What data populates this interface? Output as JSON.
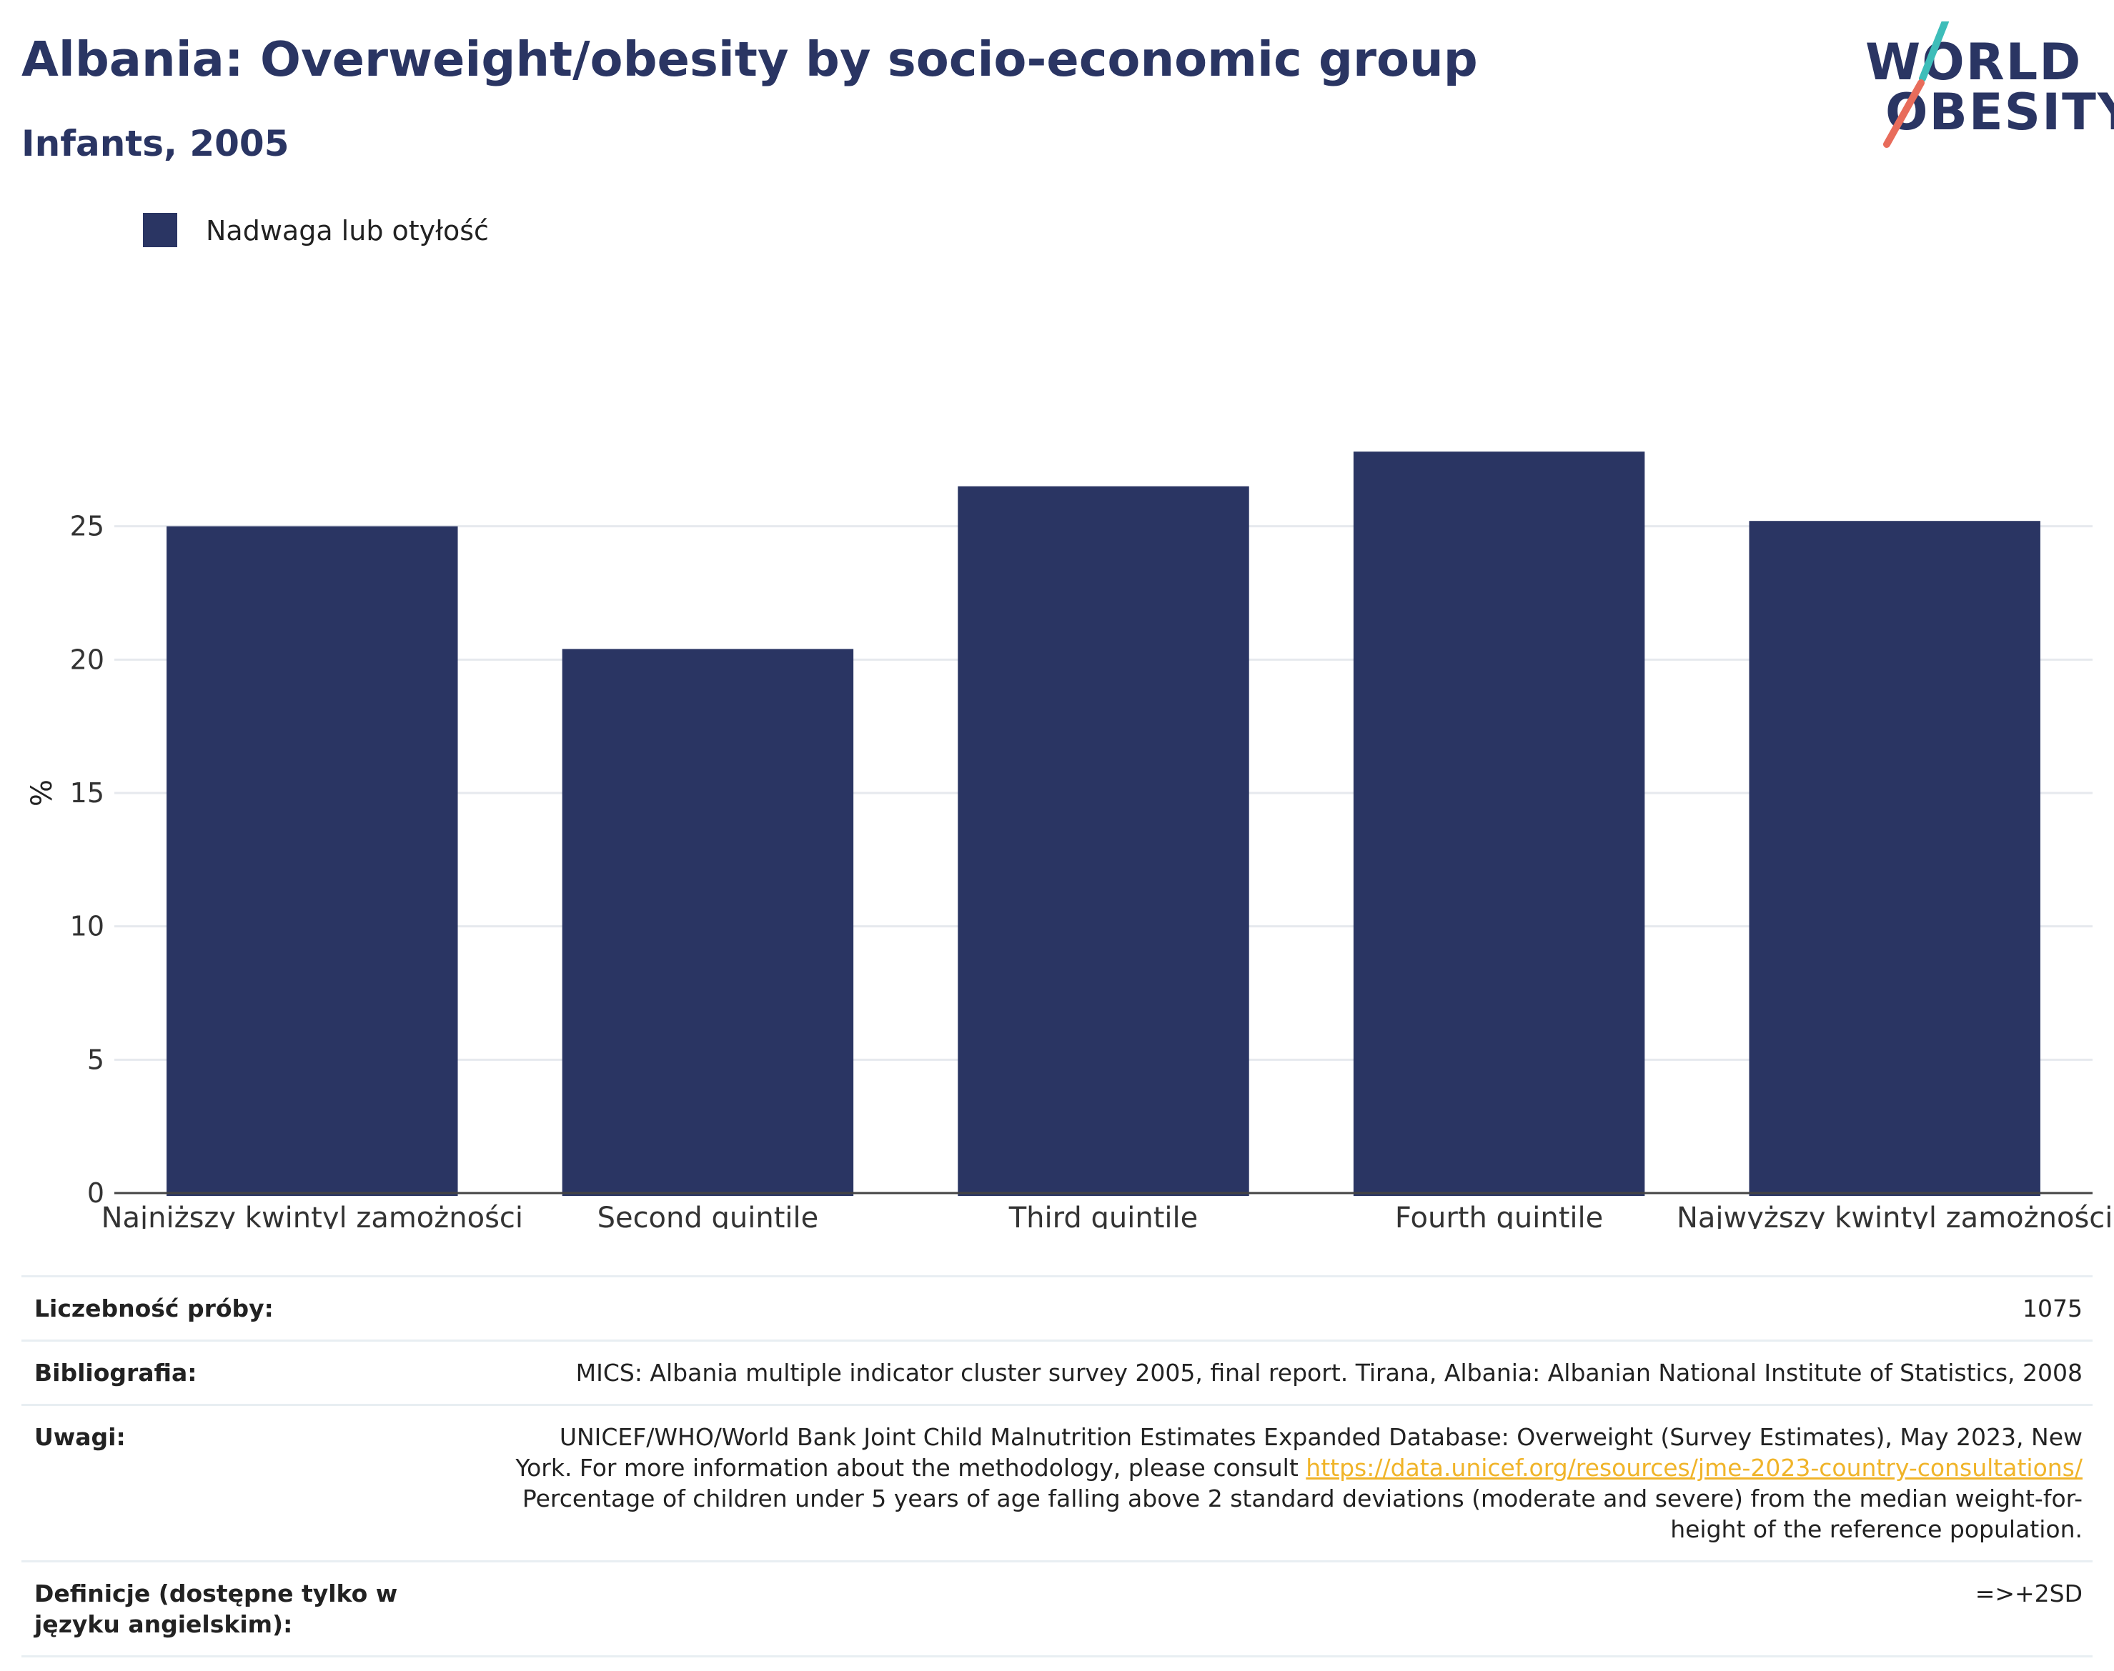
{
  "header": {
    "title": "Albania: Overweight/obesity by socio-economic group",
    "subtitle": "Infants, 2005"
  },
  "logo": {
    "line1": "WORLD",
    "line2": "OBESITY"
  },
  "colors": {
    "bar": "#2a3563",
    "grid": "#e6e9ee",
    "axis": "#444444",
    "link": "#f0b429",
    "logo_teal": "#3dbdb9",
    "logo_coral": "#e86c5b"
  },
  "chart_data": {
    "type": "bar",
    "categories": [
      "Najniższy kwintyl zamożności",
      "Second quintile",
      "Third quintile",
      "Fourth quintile",
      "Najwyższy kwintyl zamożności"
    ],
    "series": [
      {
        "name": "Nadwaga lub otyłość",
        "values": [
          25.0,
          20.4,
          26.5,
          27.8,
          25.2
        ]
      }
    ],
    "ylabel": "%",
    "yticks": [
      0,
      5,
      10,
      15,
      20,
      25
    ],
    "ylim": [
      0,
      30
    ],
    "grid": true,
    "legend_position": "top-left"
  },
  "meta": {
    "sample_label": "Liczebność próby:",
    "sample_value": "1075",
    "bib_label": "Bibliografia:",
    "bib_value": "MICS: Albania multiple indicator cluster survey 2005, final report. Tirana, Albania: Albanian National Institute of Statistics, 2008",
    "notes_label": "Uwagi:",
    "notes_line1": "UNICEF/WHO/World Bank Joint Child Malnutrition Estimates Expanded Database: Overweight (Survey Estimates), May 2023, New",
    "notes_line2": "York. For more information about the methodology, please consult",
    "notes_link": "https://data.unicef.org/resources/jme-2023-country-consultations/",
    "notes_line3": "Percentage of children under 5 years of age falling above 2 standard deviations (moderate and severe) from the median weight-for-",
    "notes_line4": "height of the reference population.",
    "def_label": "Definicje (dostępne tylko w języku angielskim):",
    "def_value": "=>+2SD"
  }
}
